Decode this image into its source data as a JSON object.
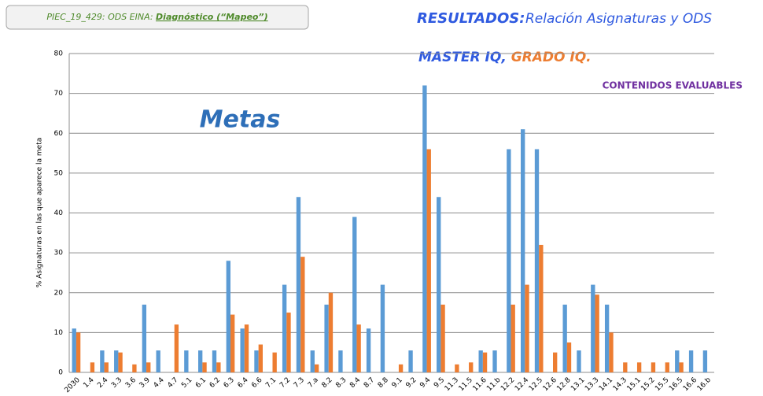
{
  "header": {
    "project": "PIEC_19_429:  ODS EINA: ",
    "project_link": "Diagnóstico  (“Mapeo”)"
  },
  "chart_data": {
    "type": "bar",
    "title": "RESULTADOS:",
    "title_detail": "Relación Asignaturas y ODS",
    "series_punctuation": [
      ",",
      "."
    ],
    "annotation": "CONTENIDOS EVALUABLES",
    "annotation2": "Metas",
    "y_label": "% Asignaturas en las que aparece la meta",
    "categories": [
      "2030",
      "1.4",
      "2.4",
      "3.3",
      "3.6",
      "3.9",
      "4.4",
      "4.7",
      "5.1",
      "6.1",
      "6.2",
      "6.3",
      "6.4",
      "6.6",
      "7.1",
      "7.2",
      "7.3",
      "7.a",
      "8.2",
      "8.3",
      "8.4",
      "8.7",
      "8.8",
      "9.1",
      "9.2",
      "9.4",
      "9.5",
      "11.3",
      "11.5",
      "11.6",
      "11.b",
      "12.2",
      "12.4",
      "12.5",
      "12.6",
      "12.8",
      "13.1",
      "13.3",
      "14.1",
      "14.3",
      "15.1",
      "15.2",
      "15.5",
      "16.5",
      "16.6",
      "16.b"
    ],
    "series": [
      {
        "name": "MASTER IQ",
        "color": "#5b9bd5",
        "values": [
          11,
          0,
          5.5,
          5.5,
          0,
          17,
          5.5,
          0,
          5.5,
          5.5,
          5.5,
          28,
          11,
          5.5,
          0,
          22,
          44,
          5.5,
          17,
          5.5,
          39,
          11,
          22,
          0,
          5.5,
          72,
          44,
          0,
          0,
          5.5,
          5.5,
          56,
          61,
          56,
          0,
          17,
          5.5,
          22,
          17,
          0,
          0,
          0,
          0,
          5.5,
          5.5,
          5.5
        ]
      },
      {
        "name": "GRADO IQ",
        "color": "#ed7d31",
        "values": [
          10,
          2.5,
          2.5,
          5,
          2,
          2.5,
          0,
          12,
          0,
          2.5,
          2.5,
          14.5,
          12,
          7,
          5,
          15,
          29,
          2,
          20,
          0,
          12,
          0,
          0,
          2,
          0,
          56,
          17,
          2,
          2.5,
          5,
          0,
          17,
          22,
          32,
          5,
          7.5,
          0,
          19.5,
          10,
          2.5,
          2.5,
          2.5,
          2.5,
          2.5,
          0,
          0
        ]
      }
    ],
    "ylim": [
      0,
      80
    ],
    "yticks": [
      0,
      10,
      20,
      30,
      40,
      50,
      60,
      70,
      80
    ],
    "grid": true
  }
}
